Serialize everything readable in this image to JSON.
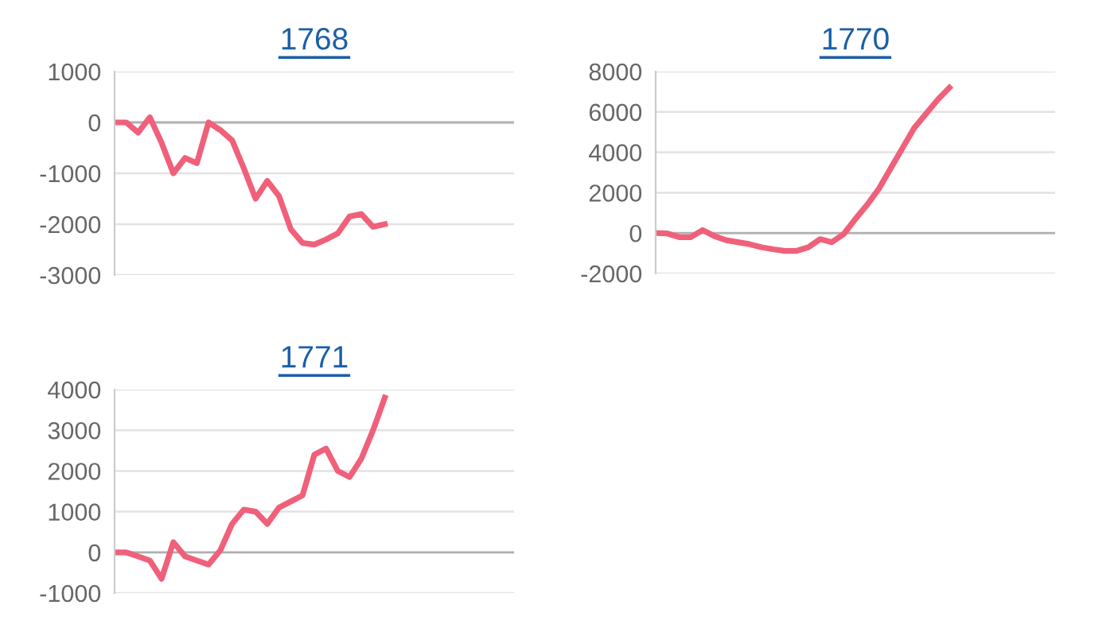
{
  "chart_data": [
    {
      "type": "line",
      "title": "1768",
      "categories": [
        null,
        null,
        null,
        null,
        null,
        null,
        null,
        null,
        null,
        null,
        null,
        null,
        null,
        null,
        null,
        null,
        null,
        null,
        null,
        null,
        null,
        null,
        null,
        null,
        null,
        null,
        null,
        null,
        null,
        null,
        null,
        null,
        null,
        null,
        null
      ],
      "series": [
        {
          "color": "#f0607a",
          "values": [
            0,
            0,
            -200,
            100,
            -400,
            -1000,
            -700,
            -800,
            0,
            -150,
            -350,
            -900,
            -1500,
            -1150,
            -1450,
            -2100,
            -2370,
            -2400,
            -2300,
            -2180,
            -1850,
            -1800,
            -2050,
            -2000,
            null,
            null,
            null,
            null,
            null,
            null,
            null,
            null,
            null,
            null,
            null
          ]
        }
      ],
      "ylim": [
        -3000,
        1000
      ],
      "yticks": [
        -3000,
        -2000,
        -1000,
        0,
        1000
      ],
      "grid": "y",
      "tick_labels": "y",
      "marker": "none",
      "line_style": "solid"
    },
    {
      "type": "line",
      "title": "1770",
      "categories": [
        null,
        null,
        null,
        null,
        null,
        null,
        null,
        null,
        null,
        null,
        null,
        null,
        null,
        null,
        null,
        null,
        null,
        null,
        null,
        null,
        null,
        null,
        null,
        null,
        null,
        null,
        null,
        null,
        null,
        null,
        null,
        null,
        null,
        null,
        null
      ],
      "series": [
        {
          "color": "#f0607a",
          "values": [
            0,
            -20,
            -200,
            -200,
            150,
            -150,
            -350,
            -450,
            -550,
            -700,
            -800,
            -880,
            -880,
            -700,
            -300,
            -450,
            -50,
            700,
            1400,
            2200,
            3200,
            4200,
            5200,
            5900,
            6600,
            7200,
            null,
            null,
            null,
            null,
            null,
            null,
            null,
            null,
            null
          ]
        }
      ],
      "ylim": [
        -2000,
        8000
      ],
      "yticks": [
        -2000,
        0,
        2000,
        4000,
        6000,
        8000
      ],
      "grid": "y",
      "tick_labels": "y",
      "marker": "none",
      "line_style": "solid"
    },
    {
      "type": "line",
      "title": "1771",
      "categories": [
        null,
        null,
        null,
        null,
        null,
        null,
        null,
        null,
        null,
        null,
        null,
        null,
        null,
        null,
        null,
        null,
        null,
        null,
        null,
        null,
        null,
        null,
        null,
        null,
        null,
        null,
        null,
        null,
        null,
        null,
        null,
        null,
        null,
        null,
        null
      ],
      "series": [
        {
          "color": "#f0607a",
          "values": [
            0,
            0,
            -100,
            -200,
            -650,
            250,
            -100,
            -200,
            -300,
            50,
            700,
            1050,
            1000,
            700,
            1100,
            1250,
            1400,
            2400,
            2550,
            2000,
            1850,
            2300,
            3000,
            3800,
            null,
            null,
            null,
            null,
            null,
            null,
            null,
            null,
            null,
            null,
            null
          ]
        }
      ],
      "ylim": [
        -1000,
        4000
      ],
      "yticks": [
        -1000,
        0,
        1000,
        2000,
        3000,
        4000
      ],
      "grid": "y",
      "tick_labels": "y",
      "marker": "none",
      "line_style": "solid"
    }
  ]
}
